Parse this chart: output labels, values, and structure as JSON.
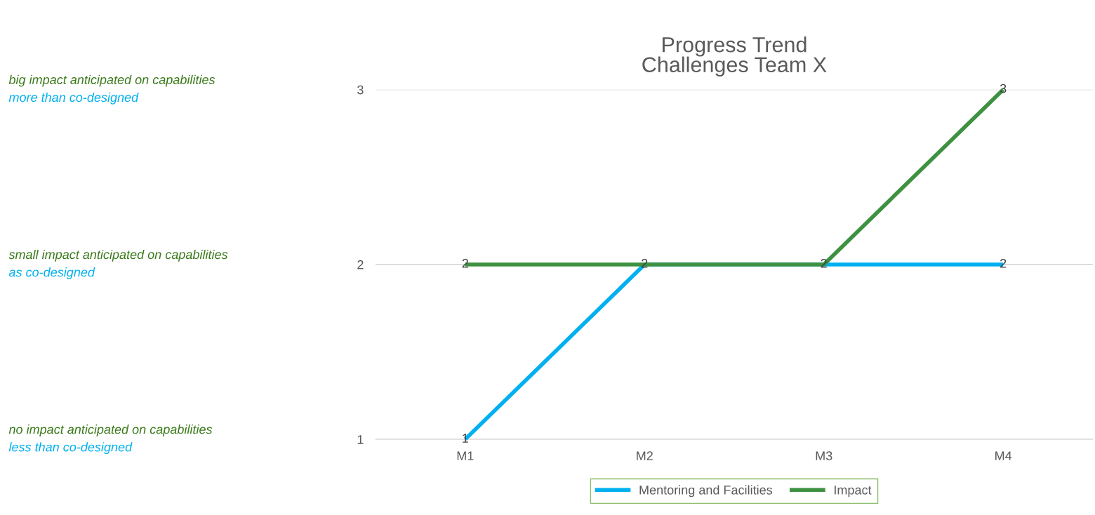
{
  "chart_data": {
    "type": "line",
    "title": "Progress Trend\nChallenges Team X",
    "categories": [
      "M1",
      "M2",
      "M3",
      "M4"
    ],
    "series": [
      {
        "name": "Mentoring and Facilities",
        "color": "#00b0f0",
        "values": [
          1,
          2,
          2,
          2
        ],
        "value_labels": [
          "1",
          "2",
          "2",
          "2"
        ]
      },
      {
        "name": "Impact",
        "color": "#3d9140",
        "values": [
          2,
          2,
          2,
          3
        ],
        "value_labels": [
          "2",
          null,
          null,
          "3"
        ]
      }
    ],
    "ylim": [
      1,
      3
    ],
    "yticks": [
      1,
      2,
      3
    ],
    "grid": "y",
    "legend": "bottom",
    "marker": "none",
    "line_style": "solid",
    "annotations": [
      "big impact anticipated on capabilities",
      "more than co-designed",
      "small impact anticipated on capabilities",
      "as co-designed",
      "no impact anticipated on capabilities",
      "less than co-designed"
    ]
  }
}
